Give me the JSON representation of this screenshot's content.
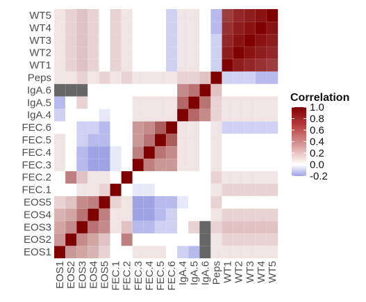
{
  "chart_data": {
    "type": "heatmap",
    "title": "",
    "xlabel": "",
    "ylabel": "",
    "variables": [
      "EOS1",
      "EOS2",
      "EOS3",
      "EOS4",
      "EOS5",
      "FEC.1",
      "FEC.2",
      "FEC.3",
      "FEC.4",
      "FEC.5",
      "FEC.6",
      "IgA.4",
      "IgA.5",
      "IgA.6",
      "Peps",
      "WT1",
      "WT2",
      "WT3",
      "WT4",
      "WT5"
    ],
    "matrix": [
      [
        1.0,
        0.3,
        0.25,
        0.2,
        0.1,
        0.0,
        0.0,
        0.05,
        0.05,
        0.05,
        0.0,
        -0.1,
        -0.15,
        "NA",
        0.05,
        0.05,
        0.05,
        0.05,
        0.05,
        0.05
      ],
      [
        0.3,
        1.0,
        0.35,
        0.25,
        0.15,
        0.0,
        0.4,
        0.0,
        0.0,
        0.0,
        0.0,
        0.0,
        0.0,
        "NA",
        0.05,
        0.1,
        0.1,
        0.1,
        0.1,
        0.1
      ],
      [
        0.25,
        0.35,
        1.0,
        0.45,
        0.35,
        0.05,
        0.15,
        -0.15,
        -0.15,
        -0.1,
        -0.1,
        0.0,
        0.1,
        "NA",
        0.1,
        0.15,
        0.15,
        0.15,
        0.15,
        0.15
      ],
      [
        0.2,
        0.25,
        0.45,
        1.0,
        0.4,
        0.05,
        0.05,
        -0.2,
        -0.2,
        -0.15,
        -0.1,
        0.0,
        0.0,
        0.0,
        0.05,
        0.1,
        0.1,
        0.1,
        0.1,
        0.1
      ],
      [
        0.1,
        0.15,
        0.35,
        0.4,
        1.0,
        0.1,
        0.05,
        -0.2,
        -0.2,
        -0.15,
        -0.15,
        -0.05,
        0.0,
        0.0,
        0.1,
        0.0,
        0.0,
        0.0,
        0.0,
        0.0
      ],
      [
        0.0,
        0.0,
        0.05,
        0.05,
        0.1,
        1.0,
        0.0,
        -0.05,
        -0.05,
        0.0,
        0.0,
        0.0,
        0.0,
        0.0,
        0.05,
        0.1,
        0.1,
        0.1,
        0.1,
        0.1
      ],
      [
        0.0,
        0.4,
        0.15,
        0.05,
        0.05,
        0.0,
        1.0,
        0.0,
        0.0,
        0.0,
        0.0,
        0.0,
        0.0,
        0.0,
        0.1,
        0.05,
        0.05,
        0.05,
        0.05,
        0.05
      ],
      [
        0.05,
        0.0,
        -0.15,
        -0.2,
        -0.2,
        -0.05,
        0.0,
        1.0,
        0.4,
        0.3,
        0.3,
        0.05,
        0.05,
        0.0,
        0.05,
        0.0,
        0.0,
        0.0,
        0.0,
        0.0
      ],
      [
        0.05,
        0.0,
        -0.15,
        -0.2,
        -0.2,
        -0.05,
        0.0,
        0.4,
        1.0,
        0.45,
        0.35,
        0.05,
        0.05,
        0.0,
        0.05,
        0.0,
        0.0,
        0.0,
        0.0,
        0.0
      ],
      [
        0.05,
        0.0,
        -0.1,
        -0.15,
        -0.15,
        0.0,
        0.0,
        0.3,
        0.45,
        1.0,
        0.55,
        0.05,
        0.05,
        0.0,
        0.05,
        0.0,
        0.0,
        0.0,
        0.0,
        0.0
      ],
      [
        0.0,
        0.0,
        -0.1,
        -0.1,
        -0.15,
        0.0,
        0.0,
        0.3,
        0.35,
        0.55,
        1.0,
        0.05,
        0.05,
        0.0,
        0.05,
        -0.1,
        -0.1,
        -0.1,
        -0.1,
        -0.1
      ],
      [
        -0.1,
        0.0,
        0.0,
        0.0,
        -0.05,
        0.0,
        0.0,
        0.05,
        0.05,
        0.05,
        0.05,
        1.0,
        0.5,
        0.35,
        0.1,
        0.05,
        0.05,
        0.05,
        0.05,
        0.05
      ],
      [
        -0.15,
        0.0,
        0.1,
        0.0,
        0.0,
        0.0,
        0.0,
        0.05,
        0.05,
        0.05,
        0.05,
        0.5,
        1.0,
        0.45,
        0.1,
        0.05,
        0.05,
        0.05,
        0.05,
        0.05
      ],
      [
        "NA",
        "NA",
        "NA",
        0.0,
        0.0,
        0.0,
        0.0,
        0.0,
        0.0,
        0.0,
        0.0,
        0.35,
        0.45,
        1.0,
        0.15,
        0.0,
        0.0,
        0.0,
        0.0,
        0.0
      ],
      [
        0.05,
        0.05,
        0.1,
        0.05,
        0.1,
        0.05,
        0.1,
        0.05,
        0.05,
        0.05,
        0.05,
        0.1,
        0.1,
        0.15,
        1.0,
        -0.1,
        -0.1,
        -0.1,
        -0.15,
        -0.15
      ],
      [
        0.05,
        0.1,
        0.15,
        0.1,
        0.0,
        0.1,
        0.05,
        0.0,
        0.0,
        0.0,
        -0.1,
        0.05,
        0.05,
        0.0,
        -0.1,
        1.0,
        0.85,
        0.8,
        0.75,
        0.7
      ],
      [
        0.05,
        0.1,
        0.15,
        0.1,
        0.0,
        0.1,
        0.05,
        0.0,
        0.0,
        0.0,
        -0.1,
        0.05,
        0.05,
        0.0,
        -0.1,
        0.85,
        1.0,
        0.9,
        0.85,
        0.8
      ],
      [
        0.05,
        0.1,
        0.15,
        0.1,
        0.0,
        0.1,
        0.05,
        0.0,
        0.0,
        0.0,
        -0.1,
        0.05,
        0.05,
        0.0,
        -0.1,
        0.8,
        0.9,
        1.0,
        0.9,
        0.85
      ],
      [
        0.05,
        0.1,
        0.15,
        0.1,
        0.0,
        0.1,
        0.05,
        0.0,
        0.0,
        0.0,
        -0.1,
        0.05,
        0.05,
        0.0,
        -0.15,
        0.75,
        0.85,
        0.9,
        1.0,
        0.9
      ],
      [
        0.05,
        0.1,
        0.15,
        0.1,
        0.0,
        0.1,
        0.05,
        0.0,
        0.0,
        0.0,
        -0.1,
        0.05,
        0.05,
        0.0,
        -0.15,
        0.7,
        0.8,
        0.85,
        0.9,
        1.0
      ]
    ],
    "missing_value_color": "#666666",
    "color_scale": {
      "low": "#5a5fd0",
      "mid": "#ffffff",
      "high": "#7f0000",
      "min": -0.2,
      "max": 1.0
    },
    "legend": {
      "title": "Correlation",
      "position": "right",
      "ticks": [
        1.0,
        0.8,
        0.6,
        0.4,
        0.2,
        0.0,
        -0.2
      ],
      "tick_labels": [
        "1.0",
        "0.8",
        "0.6",
        "0.4",
        "0.2",
        "0.0",
        "-0.2"
      ]
    },
    "grid": true
  }
}
